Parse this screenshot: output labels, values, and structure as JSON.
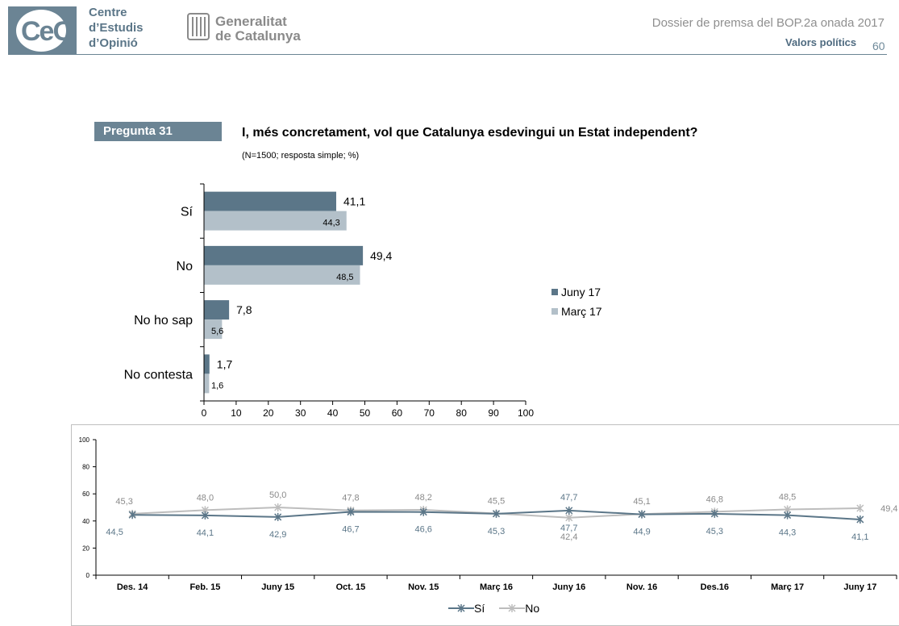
{
  "header": {
    "logo_text": "CeO",
    "org_name_lines": [
      "Centre",
      "d’Estudis",
      "d’Opinió"
    ],
    "gov_name_lines": [
      "Generalitat",
      "de Catalunya"
    ],
    "dossier": "Dossier de premsa del BOP.2a onada 2017",
    "section": "Valors polítics",
    "page_number": "60"
  },
  "question": {
    "label": "Pregunta 31",
    "text": "I, més concretament, vol que Catalunya esdevingui un Estat independent?",
    "note": "(N=1500; resposta simple; %)"
  },
  "colors": {
    "primary": "#5b7688",
    "secondary": "#b3c0c9",
    "no_line": "#bdbdbd"
  },
  "chart_data": [
    {
      "type": "bar",
      "orientation": "horizontal",
      "categories": [
        "Sí",
        "No",
        "No ho sap",
        "No contesta"
      ],
      "series": [
        {
          "name": "Juny 17",
          "values": [
            41.1,
            49.4,
            7.8,
            1.7
          ],
          "labels": [
            "41,1",
            "49,4",
            "7,8",
            "1,7"
          ]
        },
        {
          "name": "Març 17",
          "values": [
            44.3,
            48.5,
            5.6,
            1.6
          ],
          "labels": [
            "44,3",
            "48,5",
            "5,6",
            "1,6"
          ]
        }
      ],
      "xlim": [
        0,
        100
      ],
      "xticks": [
        "0",
        "10",
        "20",
        "30",
        "40",
        "50",
        "60",
        "70",
        "80",
        "90",
        "100"
      ],
      "legend": "right"
    },
    {
      "type": "line",
      "categories": [
        "Des. 14",
        "Feb. 15",
        "Juny 15",
        "Oct. 15",
        "Nov. 15",
        "Març 16",
        "Juny 16",
        "Nov. 16",
        "Des.16",
        "Març 17",
        "Juny 17"
      ],
      "series": [
        {
          "name": "Sí",
          "values": [
            44.5,
            44.1,
            42.9,
            46.7,
            46.6,
            45.3,
            47.7,
            44.9,
            45.3,
            44.3,
            41.1
          ],
          "labels": [
            "44,5",
            "44,1",
            "42,9",
            "46,7",
            "46,6",
            "45,3",
            "47,7",
            "44,9",
            "45,3",
            "44,3",
            "41,1"
          ]
        },
        {
          "name": "No",
          "values": [
            45.3,
            48.0,
            50.0,
            47.8,
            48.2,
            45.5,
            42.4,
            45.1,
            46.8,
            48.5,
            49.4
          ],
          "labels": [
            "45,3",
            "48,0",
            "50,0",
            "47,8",
            "48,2",
            "45,5",
            "42,4",
            "45,1",
            "46,8",
            "48,5",
            "49,4"
          ]
        }
      ],
      "ylim": [
        0,
        100
      ],
      "yticks": [
        "0",
        "20",
        "40",
        "60",
        "80",
        "100"
      ],
      "legend": "bottom"
    }
  ]
}
